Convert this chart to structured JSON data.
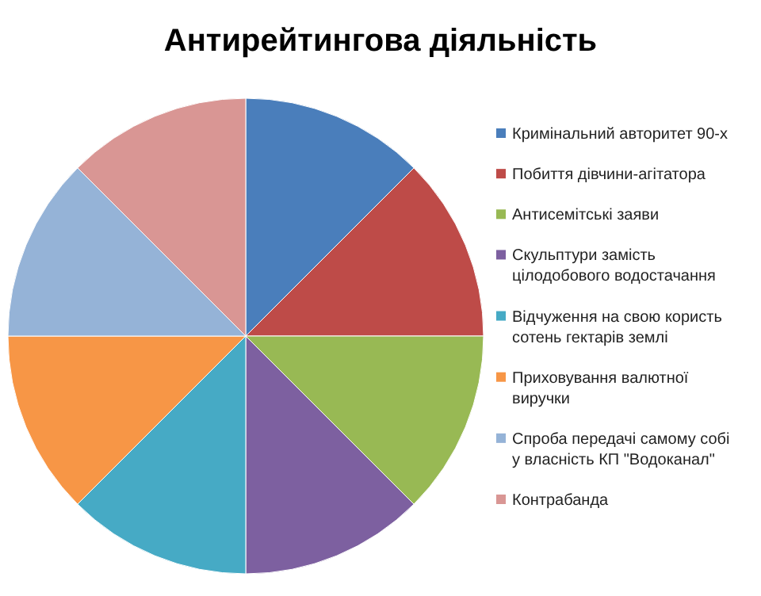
{
  "chart_data": {
    "type": "pie",
    "title": "Антирейтингова діяльність",
    "categories": [
      "Кримінальний авторитет 90-х",
      "Побиття дівчини-агітатора",
      "Антисемітські заяви",
      "Скульптури замість цілодобового водостачання",
      "Відчуження на свою користь сотень гектарів землі",
      "Приховування валютної виручки",
      "Спроба передачі самому собі у власність КП \"Водоканал\"",
      "Контрабанда"
    ],
    "values": [
      12.5,
      12.5,
      12.5,
      12.5,
      12.5,
      12.5,
      12.5,
      12.5
    ],
    "colors": [
      "#4a7ebb",
      "#be4b48",
      "#98b954",
      "#7d60a0",
      "#46aac5",
      "#f79646",
      "#95b3d7",
      "#d99694"
    ],
    "legend": "right"
  }
}
